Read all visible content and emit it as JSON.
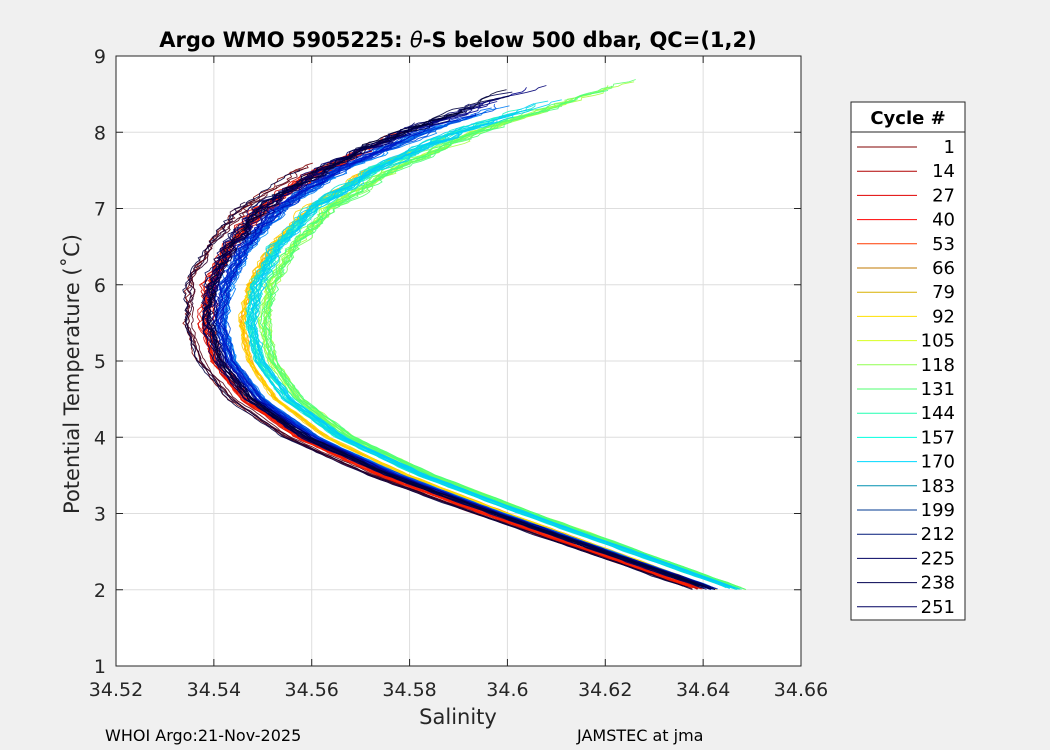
{
  "chart_data": {
    "type": "line",
    "title_prefix": "Argo WMO 5905225: ",
    "title_theta": "θ",
    "title_suffix": "-S below 500 dbar,  QC=(1,2)",
    "xlabel": "Salinity",
    "ylabel": "Potential Temperature (˚C)",
    "xlim": [
      34.52,
      34.66
    ],
    "ylim": [
      1,
      9
    ],
    "xticks": [
      34.52,
      34.54,
      34.56,
      34.58,
      34.6,
      34.62,
      34.64,
      34.66
    ],
    "xtick_labels": [
      "34.52",
      "34.54",
      "34.56",
      "34.58",
      "34.6",
      "34.62",
      "34.64",
      "34.66"
    ],
    "yticks": [
      1,
      2,
      3,
      4,
      5,
      6,
      7,
      8,
      9
    ],
    "ytick_labels": [
      "1",
      "2",
      "3",
      "4",
      "5",
      "6",
      "7",
      "8",
      "9"
    ],
    "grid": true,
    "legend": {
      "title": "Cycle #",
      "placement": "outside-right",
      "entries": [
        {
          "label": "1",
          "color": "#800000"
        },
        {
          "label": "14",
          "color": "#b00000"
        },
        {
          "label": "27",
          "color": "#e00000"
        },
        {
          "label": "40",
          "color": "#ff0000"
        },
        {
          "label": "53",
          "color": "#ff3a00"
        },
        {
          "label": "66",
          "color": "#c07800"
        },
        {
          "label": "79",
          "color": "#d8b000"
        },
        {
          "label": "92",
          "color": "#ffe000"
        },
        {
          "label": "105",
          "color": "#d8ff20"
        },
        {
          "label": "118",
          "color": "#90ff50"
        },
        {
          "label": "131",
          "color": "#50ff70"
        },
        {
          "label": "144",
          "color": "#20ffb0"
        },
        {
          "label": "157",
          "color": "#00ffe0"
        },
        {
          "label": "170",
          "color": "#00d8ff"
        },
        {
          "label": "183",
          "color": "#0090b0"
        },
        {
          "label": "199",
          "color": "#003890"
        },
        {
          "label": "212",
          "color": "#001878"
        },
        {
          "label": "225",
          "color": "#000060"
        },
        {
          "label": "238",
          "color": "#000050"
        },
        {
          "label": "251",
          "color": "#000060"
        }
      ]
    },
    "reference_profile": [
      {
        "s": 34.642,
        "t": 2.0
      },
      {
        "s": 34.62,
        "t": 2.5
      },
      {
        "s": 34.598,
        "t": 3.0
      },
      {
        "s": 34.577,
        "t": 3.5
      },
      {
        "s": 34.56,
        "t": 4.0
      },
      {
        "s": 34.549,
        "t": 4.5
      },
      {
        "s": 34.543,
        "t": 5.0
      },
      {
        "s": 34.541,
        "t": 5.5
      },
      {
        "s": 34.542,
        "t": 6.0
      },
      {
        "s": 34.546,
        "t": 6.5
      },
      {
        "s": 34.553,
        "t": 7.0
      },
      {
        "s": 34.565,
        "t": 7.5
      },
      {
        "s": 34.582,
        "t": 8.0
      },
      {
        "s": 34.6,
        "t": 8.4
      }
    ],
    "groups": [
      {
        "name": "1",
        "profiles": 7,
        "color_from": "#800000",
        "color_to": "#000040",
        "offset_bottom": -0.0035,
        "offset_top": -0.009,
        "jitter": 0.0012,
        "t_min": 2.0,
        "t_max": 7.6
      },
      {
        "name": "14",
        "profiles": 14,
        "color_from": "#c00000",
        "color_to": "#ff2000",
        "offset_bottom": -0.002,
        "offset_top": -0.003,
        "jitter": 0.0015,
        "t_min": 2.0,
        "t_max": 8.1
      },
      {
        "name": "79",
        "profiles": 10,
        "color_from": "#ff9000",
        "color_to": "#ffe000",
        "offset_bottom": 0.001,
        "offset_top": 0.008,
        "jitter": 0.001,
        "t_min": 2.0,
        "t_max": 8.05
      },
      {
        "name": "118",
        "profiles": 16,
        "color_from": "#c0ff30",
        "color_to": "#40ff80",
        "offset_bottom": 0.006,
        "offset_top": 0.012,
        "jitter": 0.0012,
        "t_min": 2.0,
        "t_max": 8.75
      },
      {
        "name": "144",
        "profiles": 22,
        "color_from": "#20ffb0",
        "color_to": "#00c8ff",
        "offset_bottom": 0.005,
        "offset_top": 0.008,
        "jitter": 0.0012,
        "t_min": 2.0,
        "t_max": 8.5
      },
      {
        "name": "183",
        "profiles": 26,
        "color_from": "#0090ff",
        "color_to": "#0010c0",
        "offset_bottom": 0.0005,
        "offset_top": 0.0005,
        "jitter": 0.0012,
        "t_min": 2.0,
        "t_max": 8.4
      },
      {
        "name": "225",
        "profiles": 16,
        "color_from": "#000090",
        "color_to": "#000030",
        "offset_bottom": 0.0,
        "offset_top": -0.004,
        "jitter": 0.0015,
        "t_min": 2.0,
        "t_max": 8.65
      }
    ]
  },
  "footer": {
    "left": "WHOI Argo:21-Nov-2025",
    "right": "JAMSTEC at jma"
  }
}
